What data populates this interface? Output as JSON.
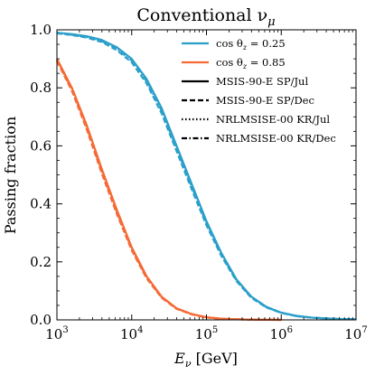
{
  "chart_data": {
    "type": "line",
    "title": "Conventional ν",
    "title_sub": "μ",
    "xlabel": "E",
    "xlabel_sub": "ν",
    "xlabel_unit": " [GeV]",
    "ylabel": "Passing fraction",
    "xscale": "log",
    "xlim": [
      1000,
      10000000
    ],
    "ylim": [
      0,
      1
    ],
    "grid": false,
    "legend_position": "top-right",
    "x_ticks": [
      {
        "value": 1000,
        "base": "10",
        "exp": "3"
      },
      {
        "value": 10000,
        "base": "10",
        "exp": "4"
      },
      {
        "value": 100000,
        "base": "10",
        "exp": "5"
      },
      {
        "value": 1000000,
        "base": "10",
        "exp": "6"
      },
      {
        "value": 10000000,
        "base": "10",
        "exp": "7"
      }
    ],
    "y_ticks": [
      {
        "value": 0,
        "label": "0.0"
      },
      {
        "value": 0.2,
        "label": "0.2"
      },
      {
        "value": 0.4,
        "label": "0.4"
      },
      {
        "value": 0.6,
        "label": "0.6"
      },
      {
        "value": 0.8,
        "label": "0.8"
      },
      {
        "value": 1.0,
        "label": "1.0"
      }
    ],
    "colors": {
      "blue": "#2a9fc9",
      "orange": "#f56a35"
    },
    "legend": [
      {
        "kind": "color",
        "color": "#2a9fc9",
        "dash": "solid",
        "label": "cos θ",
        "sub": "z",
        "rest": " = 0.25"
      },
      {
        "kind": "color",
        "color": "#f56a35",
        "dash": "solid",
        "label": "cos θ",
        "sub": "z",
        "rest": " = 0.85"
      },
      {
        "kind": "style",
        "color": "#000000",
        "dash": "solid",
        "label": "MSIS-90-E SP/Jul"
      },
      {
        "kind": "style",
        "color": "#000000",
        "dash": "dashed",
        "label": "MSIS-90-E SP/Dec"
      },
      {
        "kind": "style",
        "color": "#000000",
        "dash": "dotted",
        "label": "NRLMSISE-00 KR/Jul"
      },
      {
        "kind": "style",
        "color": "#000000",
        "dash": "dashdot",
        "label": "NRLMSISE-00 KR/Dec"
      }
    ],
    "series": [
      {
        "color": "#2a9fc9",
        "dash": "solid",
        "x": [
          1000,
          1585,
          2512,
          3981,
          6310,
          10000,
          15849,
          25119,
          39811,
          63096,
          100000,
          158489,
          251189,
          398107,
          630957,
          1000000,
          1584893,
          2511886,
          3981072,
          6309573,
          10000000
        ],
        "y": [
          0.99,
          0.985,
          0.978,
          0.965,
          0.94,
          0.9,
          0.83,
          0.73,
          0.6,
          0.47,
          0.34,
          0.23,
          0.14,
          0.08,
          0.045,
          0.025,
          0.014,
          0.008,
          0.005,
          0.003,
          0.002
        ]
      },
      {
        "color": "#2a9fc9",
        "dash": "dashed",
        "x": [
          1000,
          1585,
          2512,
          3981,
          6310,
          10000,
          15849,
          25119,
          39811,
          63096,
          100000,
          158489,
          251189,
          398107,
          630957,
          1000000,
          1584893,
          2511886,
          3981072,
          6309573,
          10000000
        ],
        "y": [
          0.988,
          0.982,
          0.973,
          0.958,
          0.93,
          0.888,
          0.815,
          0.712,
          0.582,
          0.452,
          0.326,
          0.22,
          0.134,
          0.076,
          0.043,
          0.024,
          0.013,
          0.008,
          0.005,
          0.003,
          0.002
        ]
      },
      {
        "color": "#2a9fc9",
        "dash": "dotted",
        "x": [
          1000,
          1585,
          2512,
          3981,
          6310,
          10000,
          15849,
          25119,
          39811,
          63096,
          100000,
          158489,
          251189,
          398107,
          630957,
          1000000,
          1584893,
          2511886,
          3981072,
          6309573,
          10000000
        ],
        "y": [
          0.99,
          0.985,
          0.978,
          0.965,
          0.94,
          0.9,
          0.83,
          0.73,
          0.6,
          0.47,
          0.34,
          0.23,
          0.14,
          0.08,
          0.045,
          0.025,
          0.014,
          0.008,
          0.005,
          0.003,
          0.002
        ]
      },
      {
        "color": "#2a9fc9",
        "dash": "dashdot",
        "x": [
          1000,
          1585,
          2512,
          3981,
          6310,
          10000,
          15849,
          25119,
          39811,
          63096,
          100000,
          158489,
          251189,
          398107,
          630957,
          1000000,
          1584893,
          2511886,
          3981072,
          6309573,
          10000000
        ],
        "y": [
          0.989,
          0.983,
          0.975,
          0.961,
          0.935,
          0.894,
          0.822,
          0.721,
          0.591,
          0.461,
          0.333,
          0.225,
          0.137,
          0.078,
          0.044,
          0.024,
          0.013,
          0.008,
          0.005,
          0.003,
          0.002
        ]
      },
      {
        "color": "#f56a35",
        "dash": "solid",
        "x": [
          1000,
          1585,
          2512,
          3981,
          6310,
          10000,
          15849,
          25119,
          39811,
          63096,
          100000,
          158489,
          251189,
          398107,
          630957,
          1000000
        ],
        "y": [
          0.9,
          0.8,
          0.67,
          0.52,
          0.38,
          0.25,
          0.15,
          0.08,
          0.04,
          0.02,
          0.009,
          0.004,
          0.002,
          0.001,
          0.0005,
          0.0
        ]
      },
      {
        "color": "#f56a35",
        "dash": "dashed",
        "x": [
          1000,
          1585,
          2512,
          3981,
          6310,
          10000,
          15849,
          25119,
          39811,
          63096,
          100000,
          158489,
          251189,
          398107,
          630957,
          1000000
        ],
        "y": [
          0.892,
          0.79,
          0.656,
          0.505,
          0.366,
          0.24,
          0.143,
          0.076,
          0.038,
          0.019,
          0.008,
          0.004,
          0.002,
          0.001,
          0.0005,
          0.0
        ]
      },
      {
        "color": "#f56a35",
        "dash": "dotted",
        "x": [
          1000,
          1585,
          2512,
          3981,
          6310,
          10000,
          15849,
          25119,
          39811,
          63096,
          100000,
          158489,
          251189,
          398107,
          630957,
          1000000
        ],
        "y": [
          0.9,
          0.8,
          0.67,
          0.52,
          0.38,
          0.25,
          0.15,
          0.08,
          0.04,
          0.02,
          0.009,
          0.004,
          0.002,
          0.001,
          0.0005,
          0.0
        ]
      },
      {
        "color": "#f56a35",
        "dash": "dashdot",
        "x": [
          1000,
          1585,
          2512,
          3981,
          6310,
          10000,
          15849,
          25119,
          39811,
          63096,
          100000,
          158489,
          251189,
          398107,
          630957,
          1000000
        ],
        "y": [
          0.896,
          0.795,
          0.663,
          0.512,
          0.373,
          0.245,
          0.146,
          0.078,
          0.039,
          0.02,
          0.009,
          0.004,
          0.002,
          0.001,
          0.0005,
          0.0
        ]
      }
    ]
  }
}
